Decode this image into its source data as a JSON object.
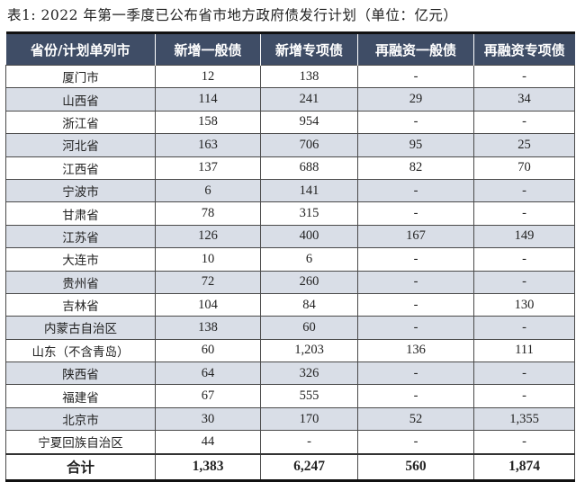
{
  "title": "表1: 2022 年第一季度已公布省市地方政府债发行计划（单位：亿元）",
  "headers": [
    "省份/计划单列市",
    "新增一般债",
    "新增专项债",
    "再融资一般债",
    "再融资专项债"
  ],
  "rows": [
    [
      "厦门市",
      "12",
      "138",
      "-",
      "-"
    ],
    [
      "山西省",
      "114",
      "241",
      "29",
      "34"
    ],
    [
      "浙江省",
      "158",
      "954",
      "-",
      "-"
    ],
    [
      "河北省",
      "163",
      "706",
      "95",
      "25"
    ],
    [
      "江西省",
      "137",
      "688",
      "82",
      "70"
    ],
    [
      "宁波市",
      "6",
      "141",
      "-",
      "-"
    ],
    [
      "甘肃省",
      "78",
      "315",
      "-",
      "-"
    ],
    [
      "江苏省",
      "126",
      "400",
      "167",
      "149"
    ],
    [
      "大连市",
      "10",
      "6",
      "-",
      "-"
    ],
    [
      "贵州省",
      "72",
      "260",
      "-",
      "-"
    ],
    [
      "吉林省",
      "104",
      "84",
      "-",
      "130"
    ],
    [
      "内蒙古自治区",
      "138",
      "60",
      "-",
      "-"
    ],
    [
      "山东（不含青岛）",
      "60",
      "1,203",
      "136",
      "111"
    ],
    [
      "陕西省",
      "64",
      "326",
      "-",
      "-"
    ],
    [
      "福建省",
      "67",
      "555",
      "-",
      "-"
    ],
    [
      "北京市",
      "30",
      "170",
      "52",
      "1,355"
    ],
    [
      "宁夏回族自治区",
      "44",
      "-",
      "-",
      "-"
    ]
  ],
  "total": [
    "合计",
    "1,383",
    "6,247",
    "560",
    "1,874"
  ],
  "colors": {
    "header_bg": "#3f4d66",
    "stripe": "#d9dee7"
  }
}
